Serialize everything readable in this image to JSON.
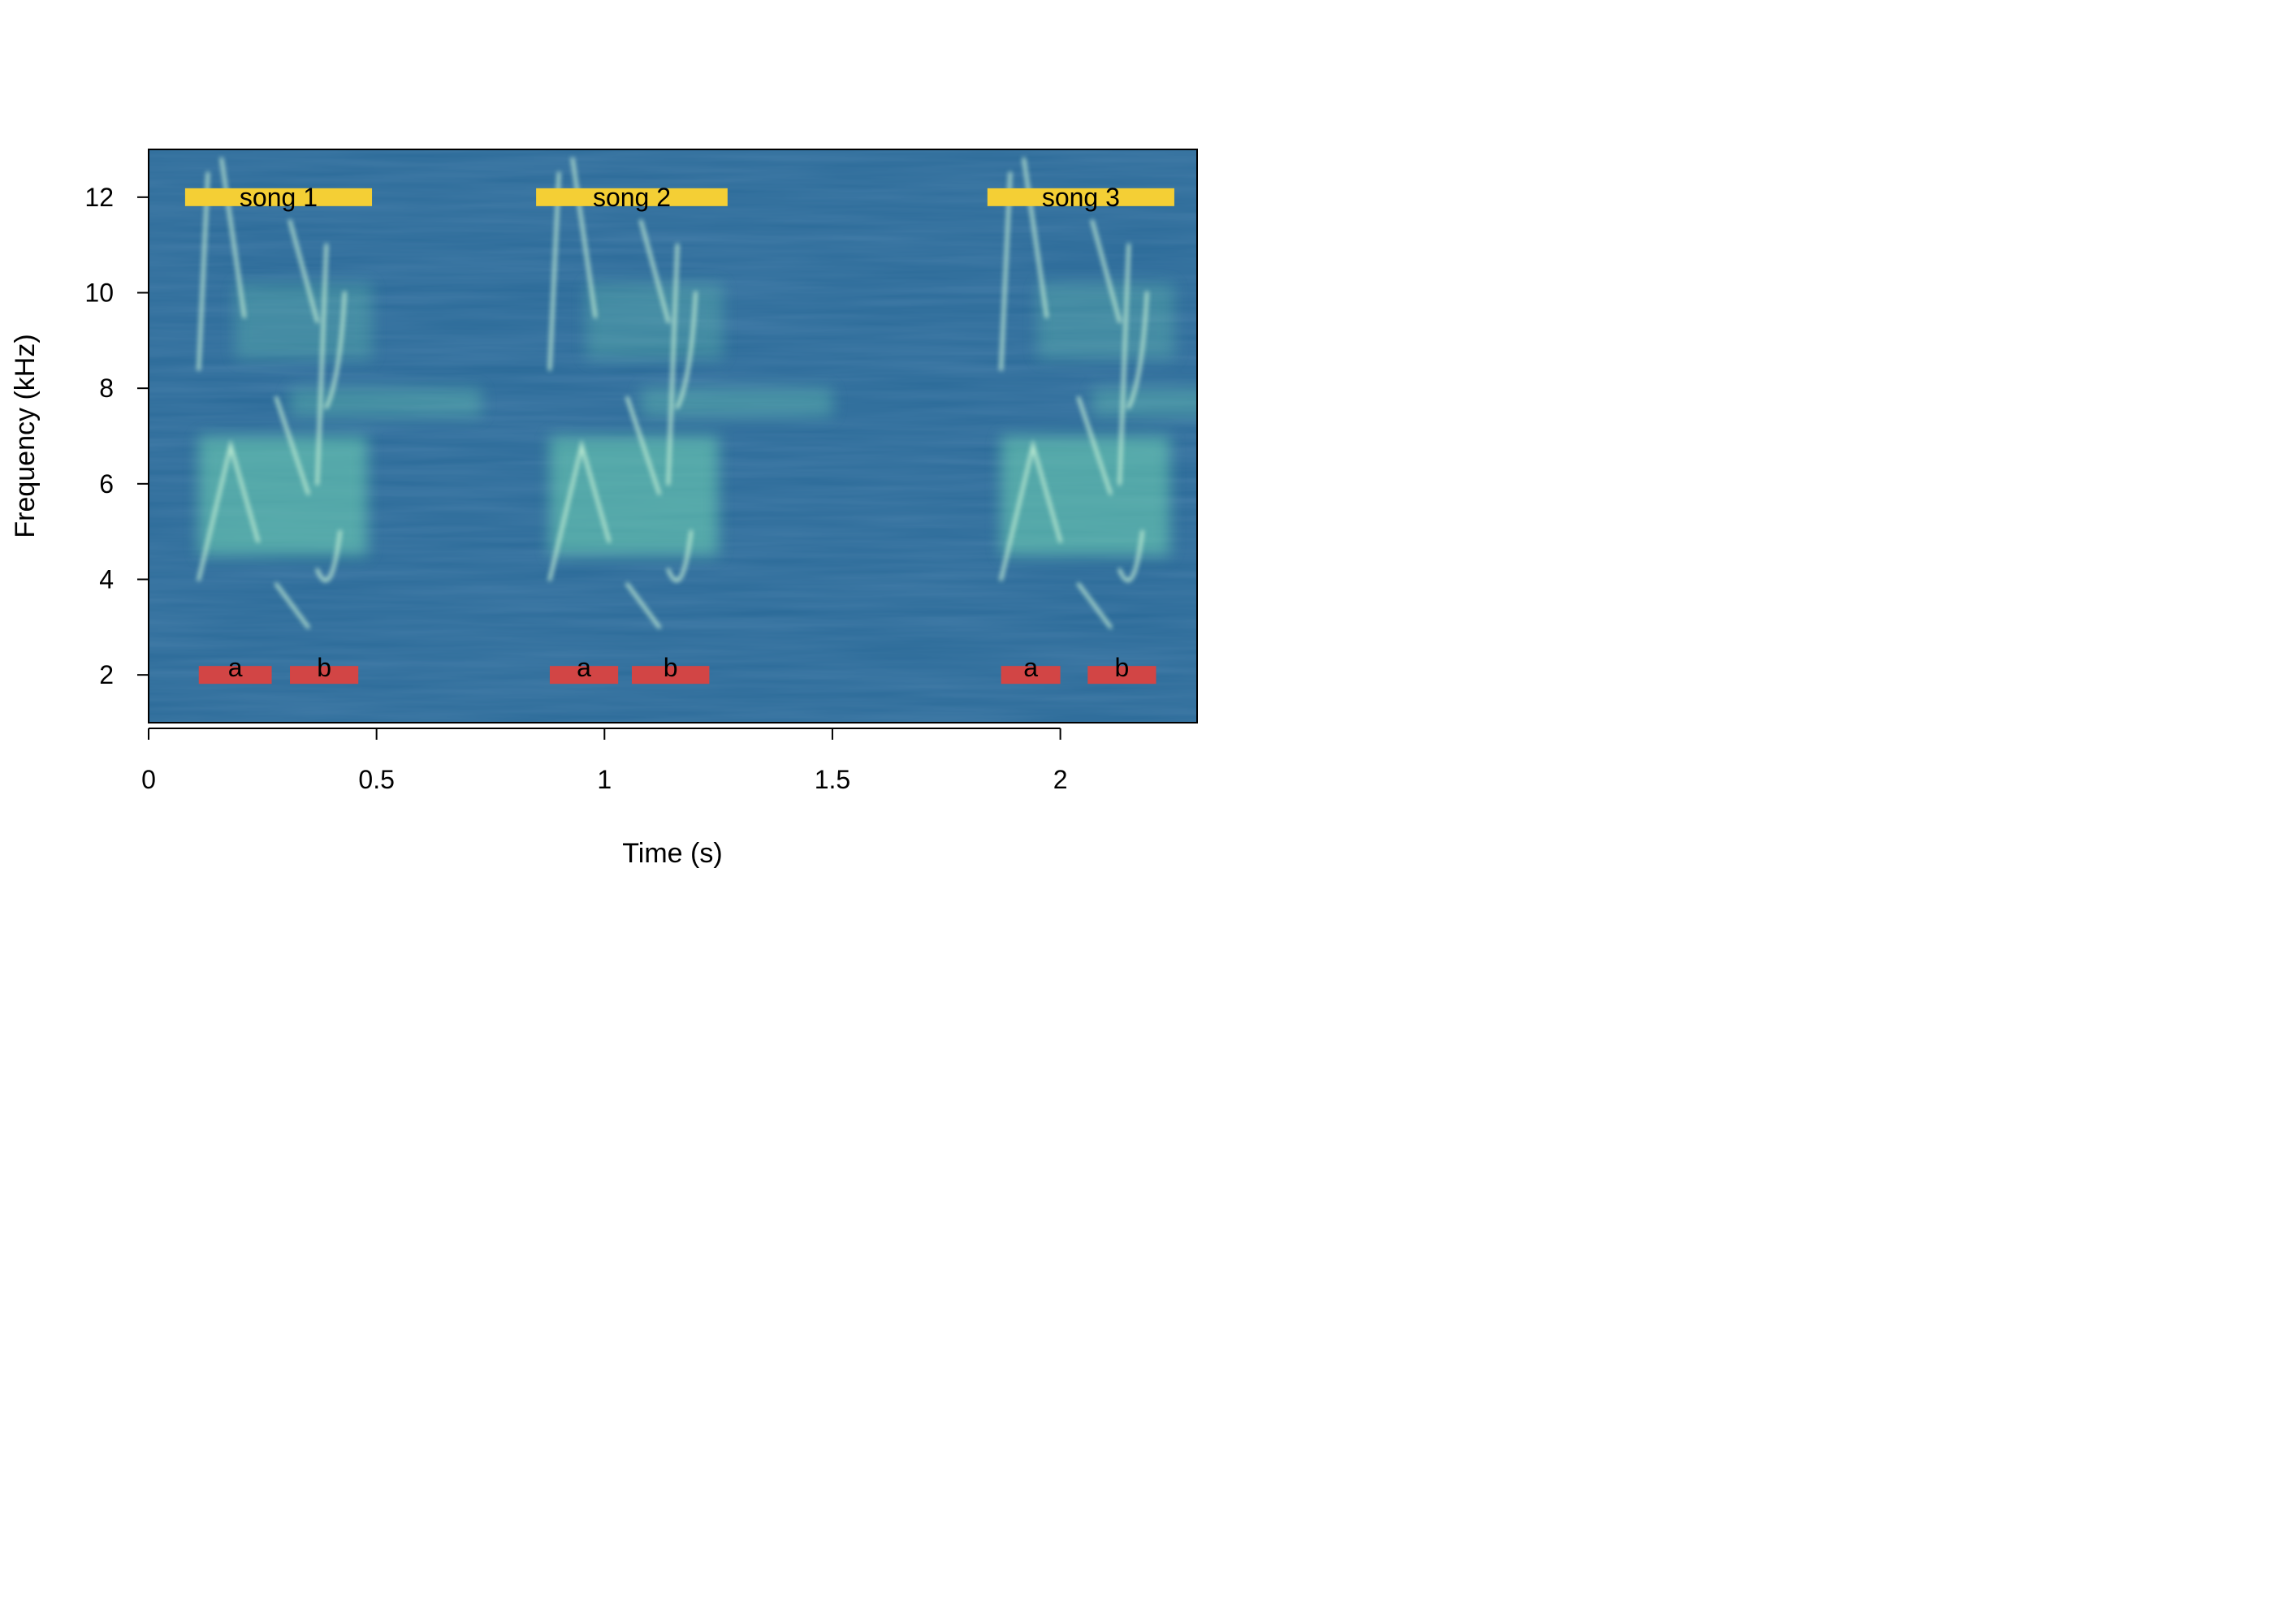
{
  "chart_data": {
    "type": "heatmap",
    "title": "",
    "xlabel": "Time (s)",
    "ylabel": "Frequency (kHz)",
    "xlim": [
      0,
      2.3
    ],
    "ylim": [
      1,
      13
    ],
    "xticks": [
      0,
      0.5,
      1,
      1.5,
      2
    ],
    "xtick_labels": [
      "0",
      "0.5",
      "1",
      "1.5",
      "2"
    ],
    "yticks": [
      2,
      4,
      6,
      8,
      10,
      12
    ],
    "ytick_labels": [
      "2",
      "4",
      "6",
      "8",
      "10",
      "12"
    ],
    "grid": false,
    "colormap": "viridis-like (dark blue background, green-white energy)",
    "songs": [
      {
        "label": "song 1",
        "start": 0.08,
        "end": 0.49,
        "freq": 12
      },
      {
        "label": "song 2",
        "start": 0.85,
        "end": 1.27,
        "freq": 12
      },
      {
        "label": "song 3",
        "start": 1.84,
        "end": 2.25,
        "freq": 12
      }
    ],
    "syllables": [
      {
        "label": "a",
        "start": 0.11,
        "end": 0.27,
        "freq": 2
      },
      {
        "label": "b",
        "start": 0.31,
        "end": 0.46,
        "freq": 2
      },
      {
        "label": "a",
        "start": 0.88,
        "end": 1.03,
        "freq": 2
      },
      {
        "label": "b",
        "start": 1.06,
        "end": 1.23,
        "freq": 2
      },
      {
        "label": "a",
        "start": 1.87,
        "end": 2.0,
        "freq": 2
      },
      {
        "label": "b",
        "start": 2.06,
        "end": 2.21,
        "freq": 2
      }
    ],
    "colors": {
      "background": "#2a6a98",
      "song_bar": "#f4cf35",
      "syllable_bar": "#d24545",
      "energy": "#6fd6b2"
    }
  }
}
